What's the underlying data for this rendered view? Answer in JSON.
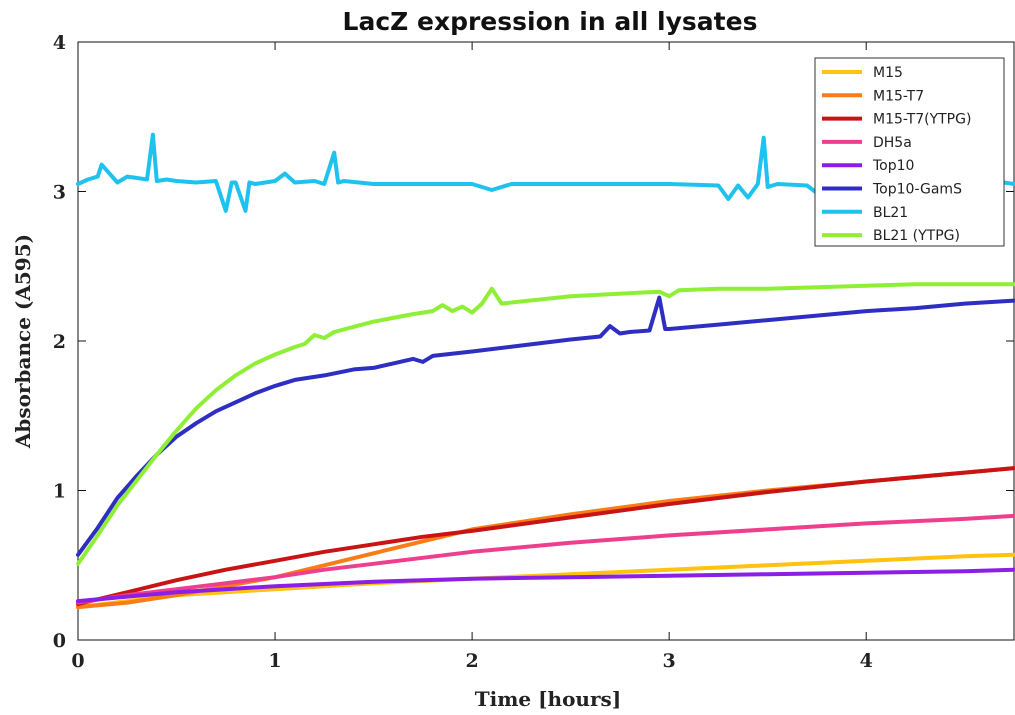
{
  "chart_data": {
    "type": "line",
    "title": "LacZ expression in all lysates",
    "xlabel": "Time [hours]",
    "ylabel": "Absorbance (A595)",
    "xlim": [
      0,
      4.75
    ],
    "ylim": [
      0,
      4
    ],
    "xticks": [
      0,
      1,
      2,
      3,
      4
    ],
    "yticks": [
      0,
      1,
      2,
      3,
      4
    ],
    "xtick_labels": [
      "0",
      "1",
      "2",
      "3",
      "4"
    ],
    "ytick_labels": [
      "0",
      "1",
      "2",
      "3",
      "4"
    ],
    "grid": false,
    "legend_position": "top-right",
    "series": [
      {
        "name": "M15",
        "color": "#FFC20E",
        "x": [
          0,
          0.25,
          0.5,
          0.75,
          1,
          1.5,
          2,
          2.5,
          3,
          3.5,
          4,
          4.5,
          4.75
        ],
        "y": [
          0.22,
          0.26,
          0.3,
          0.32,
          0.34,
          0.38,
          0.41,
          0.44,
          0.47,
          0.5,
          0.53,
          0.56,
          0.57
        ]
      },
      {
        "name": "M15-T7",
        "color": "#F97C16",
        "x": [
          0,
          0.25,
          0.5,
          0.75,
          1,
          1.25,
          1.5,
          1.75,
          2,
          2.5,
          3,
          3.5,
          4,
          4.5,
          4.75
        ],
        "y": [
          0.22,
          0.25,
          0.3,
          0.36,
          0.42,
          0.5,
          0.58,
          0.66,
          0.74,
          0.84,
          0.93,
          1.0,
          1.06,
          1.12,
          1.15
        ]
      },
      {
        "name": "M15-T7(YTPG)",
        "color": "#C81414",
        "x": [
          0,
          0.25,
          0.5,
          0.75,
          1,
          1.25,
          1.5,
          1.75,
          2,
          2.5,
          3,
          3.5,
          4,
          4.5,
          4.75
        ],
        "y": [
          0.24,
          0.32,
          0.4,
          0.47,
          0.53,
          0.59,
          0.64,
          0.69,
          0.73,
          0.82,
          0.91,
          0.99,
          1.06,
          1.12,
          1.15
        ]
      },
      {
        "name": "DH5a",
        "color": "#EE3F8E",
        "x": [
          0,
          0.25,
          0.5,
          0.75,
          1,
          1.25,
          1.5,
          1.75,
          2,
          2.5,
          3,
          3.5,
          4,
          4.5,
          4.75
        ],
        "y": [
          0.25,
          0.3,
          0.34,
          0.38,
          0.42,
          0.47,
          0.51,
          0.55,
          0.59,
          0.65,
          0.7,
          0.74,
          0.78,
          0.81,
          0.83
        ]
      },
      {
        "name": "Top10",
        "color": "#8B1FE6",
        "x": [
          0,
          0.25,
          0.5,
          0.75,
          1,
          1.5,
          2,
          2.5,
          3,
          3.5,
          4,
          4.5,
          4.75
        ],
        "y": [
          0.26,
          0.29,
          0.32,
          0.34,
          0.36,
          0.39,
          0.41,
          0.42,
          0.43,
          0.44,
          0.45,
          0.46,
          0.47
        ]
      },
      {
        "name": "Top10-GamS",
        "color": "#2E2EC2",
        "x": [
          0,
          0.1,
          0.2,
          0.3,
          0.4,
          0.5,
          0.6,
          0.7,
          0.8,
          0.9,
          1.0,
          1.1,
          1.25,
          1.4,
          1.5,
          1.6,
          1.7,
          1.75,
          1.8,
          2.0,
          2.25,
          2.5,
          2.65,
          2.7,
          2.75,
          2.8,
          2.9,
          2.95,
          2.98,
          3.0,
          3.25,
          3.5,
          3.75,
          4.0,
          4.25,
          4.5,
          4.75
        ],
        "y": [
          0.57,
          0.75,
          0.95,
          1.1,
          1.24,
          1.36,
          1.45,
          1.53,
          1.59,
          1.65,
          1.7,
          1.74,
          1.77,
          1.81,
          1.82,
          1.85,
          1.88,
          1.86,
          1.9,
          1.93,
          1.97,
          2.01,
          2.03,
          2.1,
          2.05,
          2.06,
          2.07,
          2.29,
          2.08,
          2.08,
          2.11,
          2.14,
          2.17,
          2.2,
          2.22,
          2.25,
          2.27
        ]
      },
      {
        "name": "BL21",
        "color": "#1FC2EE",
        "x": [
          0,
          0.05,
          0.1,
          0.12,
          0.2,
          0.25,
          0.3,
          0.35,
          0.38,
          0.4,
          0.45,
          0.5,
          0.6,
          0.7,
          0.75,
          0.78,
          0.8,
          0.85,
          0.87,
          0.9,
          1.0,
          1.05,
          1.1,
          1.2,
          1.25,
          1.3,
          1.32,
          1.35,
          1.5,
          2.0,
          2.1,
          2.2,
          2.5,
          3.0,
          3.25,
          3.3,
          3.35,
          3.4,
          3.45,
          3.48,
          3.5,
          3.55,
          3.7,
          3.75,
          3.78,
          3.8,
          4.0,
          4.5,
          4.7,
          4.75
        ],
        "y": [
          3.05,
          3.08,
          3.1,
          3.18,
          3.06,
          3.1,
          3.09,
          3.08,
          3.38,
          3.07,
          3.08,
          3.07,
          3.06,
          3.07,
          2.87,
          3.06,
          3.06,
          2.87,
          3.06,
          3.05,
          3.07,
          3.12,
          3.06,
          3.07,
          3.05,
          3.26,
          3.06,
          3.07,
          3.05,
          3.05,
          3.01,
          3.05,
          3.05,
          3.05,
          3.04,
          2.95,
          3.04,
          2.96,
          3.05,
          3.36,
          3.03,
          3.05,
          3.04,
          2.99,
          3.33,
          3.06,
          3.05,
          3.05,
          3.06,
          3.05
        ]
      },
      {
        "name": "BL21 (YTPG)",
        "color": "#8EEF36",
        "x": [
          0,
          0.1,
          0.2,
          0.3,
          0.4,
          0.5,
          0.6,
          0.7,
          0.8,
          0.9,
          1.0,
          1.1,
          1.15,
          1.2,
          1.25,
          1.3,
          1.5,
          1.7,
          1.8,
          1.85,
          1.9,
          1.95,
          2.0,
          2.05,
          2.1,
          2.15,
          2.5,
          2.95,
          3.0,
          3.05,
          3.25,
          3.5,
          3.75,
          4.0,
          4.25,
          4.5,
          4.75
        ],
        "y": [
          0.51,
          0.7,
          0.9,
          1.07,
          1.24,
          1.4,
          1.55,
          1.67,
          1.77,
          1.85,
          1.91,
          1.96,
          1.98,
          2.04,
          2.02,
          2.06,
          2.13,
          2.18,
          2.2,
          2.24,
          2.2,
          2.23,
          2.19,
          2.25,
          2.35,
          2.25,
          2.3,
          2.33,
          2.3,
          2.34,
          2.35,
          2.35,
          2.36,
          2.37,
          2.38,
          2.38,
          2.38
        ]
      }
    ]
  }
}
